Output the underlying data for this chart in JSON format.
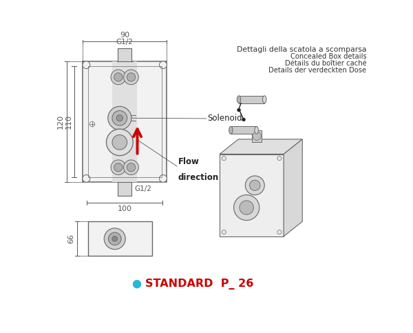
{
  "bg_color": "#ffffff",
  "line_color": "#666666",
  "dim_color": "#555555",
  "red_arrow_color": "#cc0000",
  "cyan_dot_color": "#29b6d8",
  "red_text_color": "#cc0000",
  "title_lines": [
    "Dettagli della scatola a scomparsa",
    "Concealed Box details",
    "Détails du boîtier caché",
    "Details der verdeckten Dose"
  ],
  "label_solenoid": "Solenoid",
  "label_flow_1": "Flow",
  "label_flow_2": "direction",
  "label_g12_top": "G1/2",
  "label_g12_bottom": "G1/2",
  "dim_90": "90",
  "dim_100": "100",
  "dim_110": "110",
  "dim_120": "120",
  "dim_66": "66",
  "standard_text": "STANDARD  P_ 26"
}
